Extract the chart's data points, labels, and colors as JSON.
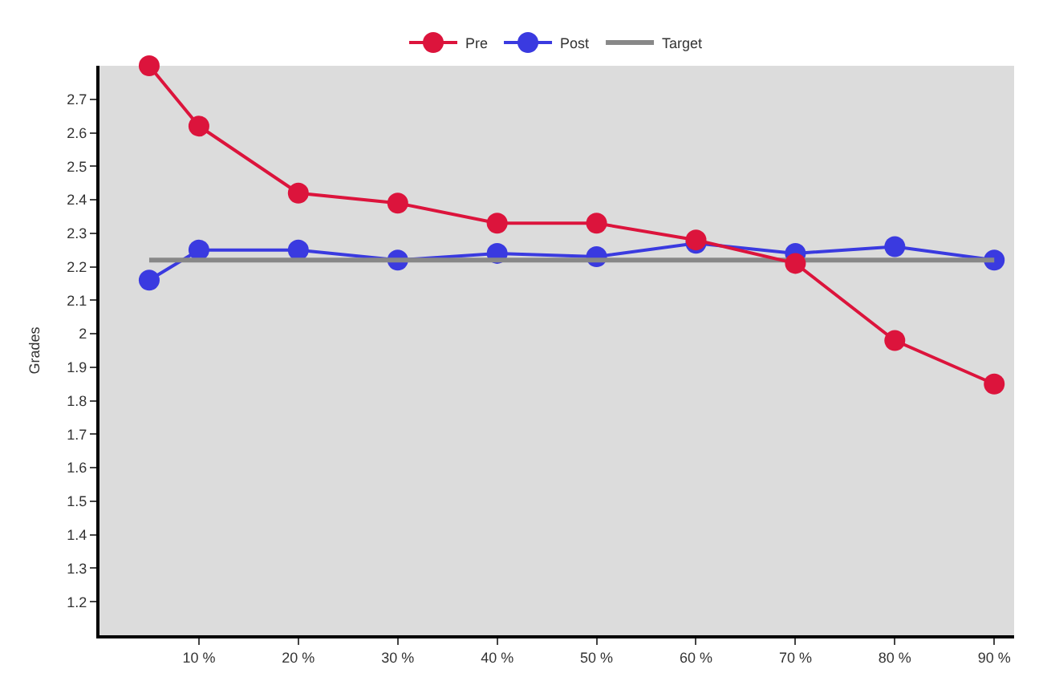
{
  "chart_data": {
    "type": "line",
    "ylabel": "Grades",
    "x": [
      5,
      10,
      20,
      30,
      40,
      50,
      60,
      70,
      80,
      90
    ],
    "series": [
      {
        "name": "Pre",
        "color": "#dc143c",
        "values": [
          2.8,
          2.62,
          2.42,
          2.39,
          2.33,
          2.33,
          2.28,
          2.21,
          1.98,
          1.85
        ]
      },
      {
        "name": "Post",
        "color": "#3a3ae0",
        "values": [
          2.16,
          2.25,
          2.25,
          2.22,
          2.24,
          2.23,
          2.27,
          2.24,
          2.26,
          2.22
        ]
      },
      {
        "name": "Target",
        "color": "#888888",
        "marker": "none",
        "values": [
          2.22,
          2.22,
          2.22,
          2.22,
          2.22,
          2.22,
          2.22,
          2.22,
          2.22,
          2.22
        ]
      }
    ],
    "xlim": [
      0,
      92
    ],
    "xticks": [
      {
        "value": 10,
        "label": "10 %"
      },
      {
        "value": 20,
        "label": "20 %"
      },
      {
        "value": 30,
        "label": "30 %"
      },
      {
        "value": 40,
        "label": "40 %"
      },
      {
        "value": 50,
        "label": "50 %"
      },
      {
        "value": 60,
        "label": "60 %"
      },
      {
        "value": 70,
        "label": "70 %"
      },
      {
        "value": 80,
        "label": "80 %"
      },
      {
        "value": 90,
        "label": "90 %"
      }
    ],
    "ylim": [
      1.1,
      2.8
    ],
    "yticks": [
      1.2,
      1.3,
      1.4,
      1.5,
      1.6,
      1.7,
      1.8,
      1.9,
      2,
      2.1,
      2.2,
      2.3,
      2.4,
      2.5,
      2.6,
      2.7
    ],
    "marker": "circle",
    "legend": "top",
    "grid": false
  }
}
